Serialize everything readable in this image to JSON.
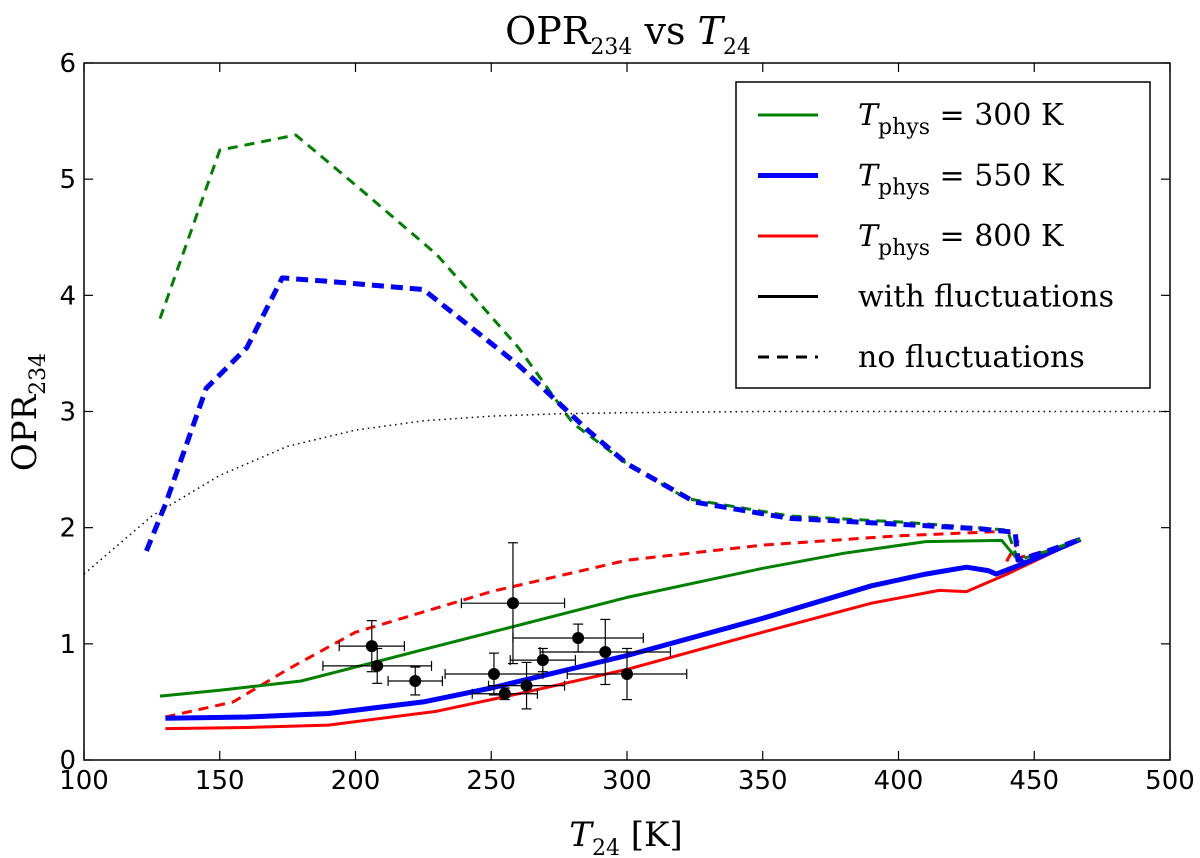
{
  "chart_data": {
    "type": "line",
    "title": {
      "main": "OPR",
      "main_sub": "234",
      "mid": " vs ",
      "var": "T",
      "var_sub": "24"
    },
    "xlabel": {
      "var": "T",
      "var_sub": "24",
      "unit": " [K]"
    },
    "ylabel": {
      "main": "OPR",
      "sub": "234"
    },
    "xlim": [
      100,
      500
    ],
    "ylim": [
      0,
      6
    ],
    "xticks": [
      100,
      150,
      200,
      250,
      300,
      350,
      400,
      450,
      500
    ],
    "yticks": [
      0,
      1,
      2,
      3,
      4,
      5,
      6
    ],
    "legend_position": "top-right",
    "legend": [
      {
        "var": "T",
        "sub": "phys",
        "text": " = 300 K",
        "color": "#008000",
        "style": "solid",
        "width": 3
      },
      {
        "var": "T",
        "sub": "phys",
        "text": " = 550 K",
        "color": "#0000ff",
        "style": "solid",
        "width": 5
      },
      {
        "var": "T",
        "sub": "phys",
        "text": " = 800 K",
        "color": "#ff0000",
        "style": "solid",
        "width": 3
      },
      {
        "var": "",
        "sub": "",
        "text": "with fluctuations",
        "color": "#000000",
        "style": "solid",
        "width": 3
      },
      {
        "var": "",
        "sub": "",
        "text": "no fluctuations",
        "color": "#000000",
        "style": "dashed",
        "width": 3
      }
    ],
    "series": [
      {
        "name": "800 K no fluctuations",
        "color": "#ff0000",
        "style": "dashed",
        "width": 3,
        "points": [
          [
            130,
            0.37
          ],
          [
            155,
            0.5
          ],
          [
            175,
            0.78
          ],
          [
            200,
            1.1
          ],
          [
            250,
            1.45
          ],
          [
            300,
            1.72
          ],
          [
            350,
            1.85
          ],
          [
            400,
            1.93
          ],
          [
            440,
            1.97
          ],
          [
            444,
            1.88
          ],
          [
            440,
            1.72
          ],
          [
            455,
            1.8
          ],
          [
            467,
            1.9
          ]
        ]
      },
      {
        "name": "300 K with fluctuations",
        "color": "#008000",
        "style": "solid",
        "width": 3,
        "points": [
          [
            128,
            0.55
          ],
          [
            150,
            0.6
          ],
          [
            180,
            0.68
          ],
          [
            200,
            0.8
          ],
          [
            225,
            0.95
          ],
          [
            250,
            1.1
          ],
          [
            300,
            1.4
          ],
          [
            350,
            1.65
          ],
          [
            380,
            1.78
          ],
          [
            410,
            1.88
          ],
          [
            438,
            1.89
          ],
          [
            443,
            1.75
          ],
          [
            447,
            1.7
          ],
          [
            467,
            1.9
          ]
        ]
      },
      {
        "name": "800 K with fluctuations",
        "color": "#ff0000",
        "style": "solid",
        "width": 3,
        "points": [
          [
            130,
            0.27
          ],
          [
            160,
            0.28
          ],
          [
            190,
            0.3
          ],
          [
            230,
            0.42
          ],
          [
            260,
            0.57
          ],
          [
            300,
            0.78
          ],
          [
            350,
            1.1
          ],
          [
            390,
            1.35
          ],
          [
            415,
            1.46
          ],
          [
            425,
            1.45
          ],
          [
            440,
            1.6
          ],
          [
            467,
            1.9
          ]
        ]
      },
      {
        "name": "550 K with fluctuations",
        "color": "#0000ff",
        "style": "solid",
        "width": 5,
        "points": [
          [
            130,
            0.36
          ],
          [
            160,
            0.37
          ],
          [
            190,
            0.4
          ],
          [
            225,
            0.5
          ],
          [
            250,
            0.62
          ],
          [
            300,
            0.9
          ],
          [
            350,
            1.22
          ],
          [
            390,
            1.5
          ],
          [
            410,
            1.6
          ],
          [
            425,
            1.66
          ],
          [
            433,
            1.63
          ],
          [
            436,
            1.6
          ],
          [
            445,
            1.68
          ],
          [
            467,
            1.9
          ]
        ]
      },
      {
        "name": "300 K no fluctuations",
        "color": "#008000",
        "style": "dashed",
        "width": 3,
        "points": [
          [
            128,
            3.8
          ],
          [
            150,
            5.25
          ],
          [
            178,
            5.38
          ],
          [
            200,
            4.95
          ],
          [
            230,
            4.35
          ],
          [
            260,
            3.55
          ],
          [
            280,
            2.9
          ],
          [
            300,
            2.55
          ],
          [
            322,
            2.25
          ],
          [
            360,
            2.1
          ],
          [
            400,
            2.05
          ],
          [
            440,
            1.98
          ],
          [
            444,
            1.72
          ],
          [
            455,
            1.8
          ],
          [
            467,
            1.9
          ]
        ]
      },
      {
        "name": "550 K no fluctuations",
        "color": "#0000ff",
        "style": "dashed",
        "width": 5,
        "points": [
          [
            123,
            1.8
          ],
          [
            130,
            2.2
          ],
          [
            145,
            3.2
          ],
          [
            160,
            3.55
          ],
          [
            173,
            4.15
          ],
          [
            190,
            4.12
          ],
          [
            210,
            4.08
          ],
          [
            225,
            4.05
          ],
          [
            260,
            3.4
          ],
          [
            285,
            2.85
          ],
          [
            300,
            2.55
          ],
          [
            325,
            2.22
          ],
          [
            360,
            2.08
          ],
          [
            400,
            2.03
          ],
          [
            430,
            1.99
          ],
          [
            443,
            1.96
          ],
          [
            444,
            1.72
          ],
          [
            455,
            1.8
          ],
          [
            467,
            1.9
          ]
        ]
      },
      {
        "name": "equilibrium OPR",
        "color": "#000000",
        "style": "dotted",
        "width": 1.5,
        "points": [
          [
            100,
            1.6
          ],
          [
            125,
            2.1
          ],
          [
            150,
            2.45
          ],
          [
            175,
            2.7
          ],
          [
            200,
            2.84
          ],
          [
            225,
            2.92
          ],
          [
            250,
            2.96
          ],
          [
            275,
            2.98
          ],
          [
            300,
            2.99
          ],
          [
            350,
            3.0
          ],
          [
            400,
            3.0
          ],
          [
            450,
            3.0
          ],
          [
            500,
            3.0
          ]
        ]
      }
    ],
    "observations": [
      {
        "x": 206,
        "y": 0.98,
        "xerr": 12,
        "yerr": 0.22
      },
      {
        "x": 208,
        "y": 0.81,
        "xerr": 20,
        "yerr": 0.15
      },
      {
        "x": 222,
        "y": 0.68,
        "xerr": 10,
        "yerr": 0.12
      },
      {
        "x": 251,
        "y": 0.74,
        "xerr": 18,
        "yerr": 0.18
      },
      {
        "x": 255,
        "y": 0.57,
        "xerr": 12,
        "yerr": 0.05
      },
      {
        "x": 258,
        "y": 1.35,
        "xerr": 19,
        "yerr": 0.52
      },
      {
        "x": 263,
        "y": 0.64,
        "xerr": 14,
        "yerr": 0.2
      },
      {
        "x": 269,
        "y": 0.86,
        "xerr": 12,
        "yerr": 0.1
      },
      {
        "x": 282,
        "y": 1.05,
        "xerr": 24,
        "yerr": 0.12
      },
      {
        "x": 292,
        "y": 0.93,
        "xerr": 24,
        "yerr": 0.28
      },
      {
        "x": 300,
        "y": 0.74,
        "xerr": 22,
        "yerr": 0.22
      }
    ]
  }
}
